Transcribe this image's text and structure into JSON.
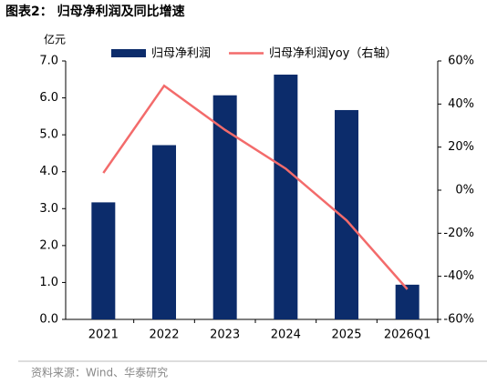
{
  "chart_data": {
    "type": "bar",
    "title": "图表2：  归母净利润及同比增速",
    "y_unit": "亿元",
    "source": "资料来源：Wind、华泰研究",
    "categories": [
      "2021",
      "2022",
      "2023",
      "2024",
      "2025",
      "2026Q1"
    ],
    "series": [
      {
        "name": "归母净利润",
        "type": "bar",
        "color": "#0c2c6b",
        "values": [
          3.17,
          4.72,
          6.07,
          6.63,
          5.67,
          0.94
        ]
      },
      {
        "name": "归母净利润yoy（右轴）",
        "type": "line",
        "axis": "y2",
        "color": "#f36b6b",
        "values": [
          8,
          48.5,
          28,
          10,
          -14,
          -46
        ]
      }
    ],
    "ylim": [
      0,
      7
    ],
    "yticks": [
      {
        "value": 0,
        "label": "0.0"
      },
      {
        "value": 1,
        "label": "1.0"
      },
      {
        "value": 2,
        "label": "2.0"
      },
      {
        "value": 3,
        "label": "3.0"
      },
      {
        "value": 4,
        "label": "4.0"
      },
      {
        "value": 5,
        "label": "5.0"
      },
      {
        "value": 6,
        "label": "6.0"
      },
      {
        "value": 7,
        "label": "7.0"
      }
    ],
    "y2lim": [
      -60,
      60
    ],
    "y2ticks": [
      {
        "value": -60,
        "label": "-60%"
      },
      {
        "value": -40,
        "label": "-40%"
      },
      {
        "value": -20,
        "label": "-20%"
      },
      {
        "value": 0,
        "label": "0%"
      },
      {
        "value": 20,
        "label": "20%"
      },
      {
        "value": 40,
        "label": "40%"
      },
      {
        "value": 60,
        "label": "60%"
      }
    ],
    "grid": false
  }
}
